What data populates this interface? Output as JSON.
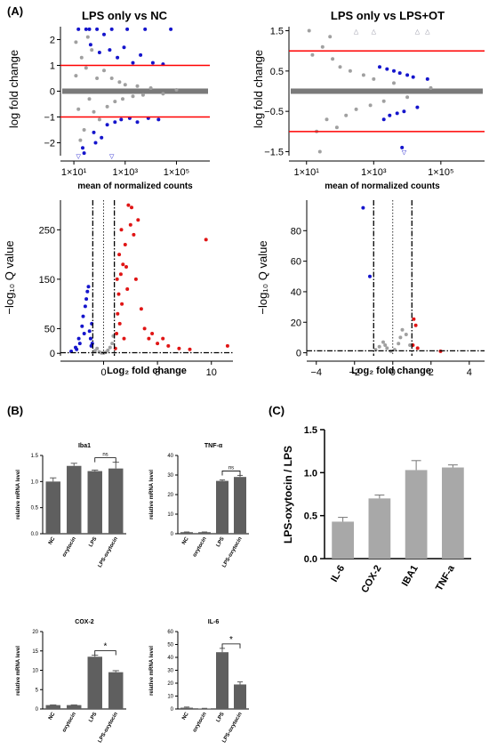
{
  "figure": {
    "panel_labels": [
      "(A)",
      "(B)",
      "(C)"
    ],
    "ns_label": "ns",
    "sig_label": "*",
    "colors": {
      "gray": "#a0a0a0",
      "blue": "#1515cc",
      "red": "#e01515",
      "bar": "#5f5f5f",
      "bar_c": "#a8a8a8",
      "axis": "#000000",
      "ma_hline": "#ff0000"
    }
  },
  "chart_data": [
    {
      "id": "A1",
      "type": "scatter",
      "title": "LPS only vs NC",
      "xlabel": "mean of normalized counts",
      "ylabel": "log fold change",
      "xscale": "log",
      "xlim": [
        3,
        2000000
      ],
      "xtick_values": [
        10,
        1000,
        100000
      ],
      "xtick_labels": [
        "1×10¹",
        "1×10³",
        "1×10⁵"
      ],
      "ylim": [
        -2.5,
        2.5
      ],
      "yticks": [
        -2,
        -1,
        0,
        1,
        2
      ],
      "hlines": [
        1,
        -1
      ],
      "series": [
        {
          "name": "not significant",
          "color": "gray",
          "points": [
            [
              12,
              0.6
            ],
            [
              15,
              -0.7
            ],
            [
              20,
              1.3
            ],
            [
              25,
              -1.5
            ],
            [
              30,
              0.9
            ],
            [
              40,
              -0.3
            ],
            [
              50,
              1.6
            ],
            [
              60,
              -0.8
            ],
            [
              80,
              0.5
            ],
            [
              100,
              -1.1
            ],
            [
              150,
              0.8
            ],
            [
              200,
              -0.6
            ],
            [
              300,
              0.5
            ],
            [
              400,
              -0.4
            ],
            [
              600,
              0.35
            ],
            [
              800,
              -0.3
            ],
            [
              1000,
              0.25
            ],
            [
              2000,
              -0.2
            ],
            [
              3000,
              0.2
            ],
            [
              5000,
              -0.15
            ],
            [
              10000,
              0.12
            ],
            [
              30000,
              -0.1
            ],
            [
              100000,
              0.05
            ],
            [
              12,
              1.9
            ],
            [
              18,
              -1.9
            ],
            [
              35,
              2.1
            ]
          ]
        },
        {
          "name": "significant",
          "color": "blue",
          "points": [
            [
              15,
              2.4
            ],
            [
              22,
              -2.2
            ],
            [
              30,
              2.4
            ],
            [
              45,
              1.8
            ],
            [
              60,
              -1.6
            ],
            [
              80,
              2.4
            ],
            [
              100,
              1.5
            ],
            [
              120,
              -1.8
            ],
            [
              150,
              2.2
            ],
            [
              200,
              -1.3
            ],
            [
              250,
              1.6
            ],
            [
              300,
              2.4
            ],
            [
              400,
              -1.2
            ],
            [
              500,
              1.3
            ],
            [
              700,
              -1.1
            ],
            [
              900,
              1.7
            ],
            [
              1200,
              2.4
            ],
            [
              1500,
              -1.05
            ],
            [
              2000,
              1.1
            ],
            [
              3000,
              -1.2
            ],
            [
              4000,
              1.4
            ],
            [
              6000,
              2.4
            ],
            [
              8000,
              -1.05
            ],
            [
              12000,
              1.1
            ],
            [
              20000,
              -1.1
            ],
            [
              30000,
              1.05
            ],
            [
              60000,
              2.4
            ],
            [
              25,
              -2.4
            ],
            [
              40,
              2.4
            ],
            [
              70,
              -2.0
            ]
          ]
        }
      ],
      "annotations": [
        {
          "text": "▽",
          "x": 15,
          "y": -2.5
        },
        {
          "text": "▽",
          "x": 300,
          "y": -2.5
        }
      ]
    },
    {
      "id": "A2",
      "type": "scatter",
      "title": "LPS only vs LPS+OT",
      "xlabel": "mean of normalized counts",
      "ylabel": "log fold change",
      "xscale": "log",
      "xlim": [
        3,
        2000000
      ],
      "xtick_values": [
        10,
        1000,
        100000
      ],
      "xtick_labels": [
        "1×10¹",
        "1×10³",
        "1×10⁵"
      ],
      "ylim": [
        -1.6,
        1.6
      ],
      "yticks": [
        -1.5,
        -0.5,
        0.5,
        1.5
      ],
      "ytick_labels": [
        "−1.5",
        "−0.5",
        "0.5",
        "1.5"
      ],
      "hlines": [
        1,
        -1
      ],
      "series": [
        {
          "name": "not significant",
          "color": "gray",
          "points": [
            [
              15,
              0.9
            ],
            [
              20,
              -1.0
            ],
            [
              30,
              1.1
            ],
            [
              40,
              -0.7
            ],
            [
              60,
              0.8
            ],
            [
              80,
              -0.9
            ],
            [
              100,
              0.6
            ],
            [
              150,
              -0.6
            ],
            [
              200,
              0.5
            ],
            [
              300,
              -0.45
            ],
            [
              500,
              0.4
            ],
            [
              800,
              -0.35
            ],
            [
              1000,
              0.3
            ],
            [
              2000,
              -0.25
            ],
            [
              4000,
              0.2
            ],
            [
              10000,
              -0.15
            ],
            [
              50000,
              0.08
            ],
            [
              12,
              1.5
            ],
            [
              25,
              -1.5
            ],
            [
              50,
              1.35
            ]
          ]
        },
        {
          "name": "significant",
          "color": "blue",
          "points": [
            [
              1500,
              0.6
            ],
            [
              2500,
              0.55
            ],
            [
              3000,
              -0.6
            ],
            [
              4000,
              0.5
            ],
            [
              5000,
              -0.55
            ],
            [
              6000,
              0.45
            ],
            [
              8000,
              -0.5
            ],
            [
              10000,
              0.4
            ],
            [
              15000,
              0.35
            ],
            [
              20000,
              -0.4
            ],
            [
              40000,
              0.3
            ],
            [
              2000,
              -0.7
            ],
            [
              7000,
              -1.4
            ]
          ]
        }
      ],
      "annotations": [
        {
          "text": "△",
          "x": 300,
          "y": 1.5
        },
        {
          "text": "△",
          "x": 1000,
          "y": 1.5
        },
        {
          "text": "△",
          "x": 20000,
          "y": 1.5
        },
        {
          "text": "△",
          "x": 40000,
          "y": 1.5
        },
        {
          "text": "▽",
          "x": 8000,
          "y": -1.5
        }
      ]
    },
    {
      "id": "A3",
      "type": "scatter",
      "title": "",
      "xlabel": "Log₂ fold change",
      "ylabel": "−log₁₀ Q value",
      "xlim": [
        -4,
        12
      ],
      "xticks": [
        0,
        5,
        10
      ],
      "ylim": [
        -5,
        310
      ],
      "yticks": [
        0,
        50,
        150,
        250
      ],
      "vlines": [
        {
          "x": -1,
          "style": "dashdot"
        },
        {
          "x": 0,
          "style": "dotted"
        },
        {
          "x": 1,
          "style": "dashdot"
        }
      ],
      "hline": {
        "y": 1.3,
        "style": "dashdot"
      },
      "series": [
        {
          "name": "not significant",
          "color": "gray",
          "points": [
            [
              -0.8,
              5
            ],
            [
              -0.6,
              10
            ],
            [
              -0.4,
              3
            ],
            [
              -0.2,
              1
            ],
            [
              0,
              0.5
            ],
            [
              0.2,
              2
            ],
            [
              0.4,
              6
            ],
            [
              0.6,
              12
            ],
            [
              0.8,
              20
            ],
            [
              0.9,
              35
            ]
          ]
        },
        {
          "name": "down",
          "color": "blue",
          "points": [
            [
              -3.0,
              4
            ],
            [
              -2.6,
              12
            ],
            [
              -2.3,
              30
            ],
            [
              -2.0,
              55
            ],
            [
              -1.9,
              75
            ],
            [
              -1.7,
              95
            ],
            [
              -1.6,
              110
            ],
            [
              -1.5,
              125
            ],
            [
              -1.4,
              135
            ],
            [
              -1.3,
              45
            ],
            [
              -1.2,
              30
            ],
            [
              -1.15,
              15
            ],
            [
              -1.1,
              60
            ],
            [
              -1.05,
              20
            ],
            [
              -2.5,
              8
            ],
            [
              -1.8,
              40
            ],
            [
              -2.2,
              20
            ]
          ]
        },
        {
          "name": "up",
          "color": "red",
          "points": [
            [
              1.1,
              10
            ],
            [
              1.2,
              40
            ],
            [
              1.3,
              80
            ],
            [
              1.4,
              120
            ],
            [
              1.5,
              60
            ],
            [
              1.6,
              160
            ],
            [
              1.7,
              100
            ],
            [
              1.8,
              180
            ],
            [
              1.9,
              30
            ],
            [
              2.0,
              220
            ],
            [
              2.2,
              130
            ],
            [
              2.3,
              300
            ],
            [
              2.5,
              260
            ],
            [
              2.6,
              295
            ],
            [
              2.8,
              240
            ],
            [
              3.0,
              150
            ],
            [
              3.2,
              270
            ],
            [
              3.5,
              90
            ],
            [
              3.8,
              50
            ],
            [
              4.2,
              30
            ],
            [
              4.5,
              40
            ],
            [
              5.0,
              20
            ],
            [
              5.5,
              30
            ],
            [
              6.0,
              15
            ],
            [
              7.0,
              10
            ],
            [
              8.0,
              8
            ],
            [
              9.5,
              230
            ],
            [
              11.5,
              15
            ],
            [
              1.25,
              150
            ],
            [
              1.45,
              200
            ],
            [
              1.65,
              250
            ],
            [
              2.1,
              175
            ]
          ]
        }
      ]
    },
    {
      "id": "A4",
      "type": "scatter",
      "title": "",
      "xlabel": "Log₂ fold change",
      "ylabel": "−log₁₀ Q value",
      "xlim": [
        -4.5,
        4.8
      ],
      "xticks": [
        -4,
        -2,
        0,
        2,
        4
      ],
      "ylim": [
        -2,
        100
      ],
      "yticks": [
        0,
        20,
        40,
        60,
        80
      ],
      "vlines": [
        {
          "x": -1,
          "style": "dashdot"
        },
        {
          "x": 0,
          "style": "dotted"
        },
        {
          "x": 1,
          "style": "dashdot"
        }
      ],
      "hline": {
        "y": 1.3,
        "style": "dashdot"
      },
      "series": [
        {
          "name": "not significant",
          "color": "gray",
          "points": [
            [
              -0.9,
              2
            ],
            [
              -0.7,
              4
            ],
            [
              -0.5,
              7
            ],
            [
              -0.3,
              3
            ],
            [
              -0.1,
              1
            ],
            [
              0.1,
              2
            ],
            [
              0.3,
              6
            ],
            [
              0.5,
              15
            ],
            [
              0.7,
              12
            ],
            [
              0.9,
              5
            ],
            [
              0.4,
              10
            ],
            [
              -0.4,
              5
            ]
          ]
        },
        {
          "name": "down",
          "color": "blue",
          "points": [
            [
              -1.55,
              95
            ],
            [
              -1.2,
              50
            ]
          ]
        },
        {
          "name": "up",
          "color": "red",
          "points": [
            [
              1.1,
              22
            ],
            [
              1.2,
              18
            ],
            [
              1.05,
              5
            ],
            [
              1.3,
              3
            ],
            [
              2.5,
              1
            ]
          ]
        }
      ]
    },
    {
      "id": "B1",
      "type": "bar",
      "title": "Iba1",
      "ylabel": "relative mRNA level",
      "categories": [
        "NC",
        "oxytocin",
        "LPS",
        "LPS-oxytocin"
      ],
      "values": [
        1.0,
        1.3,
        1.2,
        1.25
      ],
      "errors": [
        0.07,
        0.05,
        0.02,
        0.12
      ],
      "ylim": [
        0,
        1.5
      ],
      "yticks": [
        0.0,
        0.5,
        1.0,
        1.5
      ],
      "ytick_labels": [
        "0.0",
        "0.5",
        "1.0",
        "1.5"
      ],
      "comparison": {
        "between": [
          "LPS",
          "LPS-oxytocin"
        ],
        "label": "ns"
      }
    },
    {
      "id": "B2",
      "type": "bar",
      "title": "TNF-α",
      "ylabel": "relative mRNA level",
      "categories": [
        "NC",
        "oxytocin",
        "LPS",
        "LPS-oxytocin"
      ],
      "values": [
        0.8,
        0.8,
        27,
        29
      ],
      "errors": [
        0.1,
        0.1,
        0.5,
        0.8
      ],
      "ylim": [
        0,
        40
      ],
      "yticks": [
        0,
        10,
        20,
        30,
        40
      ],
      "comparison": {
        "between": [
          "LPS",
          "LPS-oxytocin"
        ],
        "label": "ns"
      }
    },
    {
      "id": "B3",
      "type": "bar",
      "title": "COX-2",
      "ylabel": "relative mRNA level",
      "categories": [
        "NC",
        "oxytocin",
        "LPS",
        "LPS-oxytocin"
      ],
      "values": [
        1.0,
        1.0,
        13.5,
        9.5
      ],
      "errors": [
        0.05,
        0.05,
        0.4,
        0.4
      ],
      "ylim": [
        0,
        20
      ],
      "yticks": [
        0,
        5,
        10,
        15,
        20
      ],
      "comparison": {
        "between": [
          "LPS",
          "LPS-oxytocin"
        ],
        "label": "*"
      }
    },
    {
      "id": "B4",
      "type": "bar",
      "title": "IL-6",
      "ylabel": "relative mRNA level",
      "categories": [
        "NC",
        "oxytocin",
        "LPS",
        "LPS-oxytocin"
      ],
      "values": [
        1.0,
        0.3,
        44,
        19
      ],
      "errors": [
        0.5,
        0.2,
        3,
        2
      ],
      "ylim": [
        0,
        60
      ],
      "yticks": [
        0,
        10,
        20,
        30,
        40,
        50,
        60
      ],
      "comparison": {
        "between": [
          "LPS",
          "LPS-oxytocin"
        ],
        "label": "*"
      }
    },
    {
      "id": "C",
      "type": "bar",
      "title": "",
      "ylabel": "LPS-oxytocin / LPS",
      "categories": [
        "IL-6",
        "COX-2",
        "IBA1",
        "TNF-a"
      ],
      "values": [
        0.43,
        0.7,
        1.03,
        1.06
      ],
      "errors": [
        0.05,
        0.04,
        0.11,
        0.03
      ],
      "ylim": [
        0,
        1.5
      ],
      "yticks": [
        0.0,
        0.5,
        1.0,
        1.5
      ],
      "ytick_labels": [
        "0.0",
        "0.5",
        "1.0",
        "1.5"
      ]
    }
  ]
}
